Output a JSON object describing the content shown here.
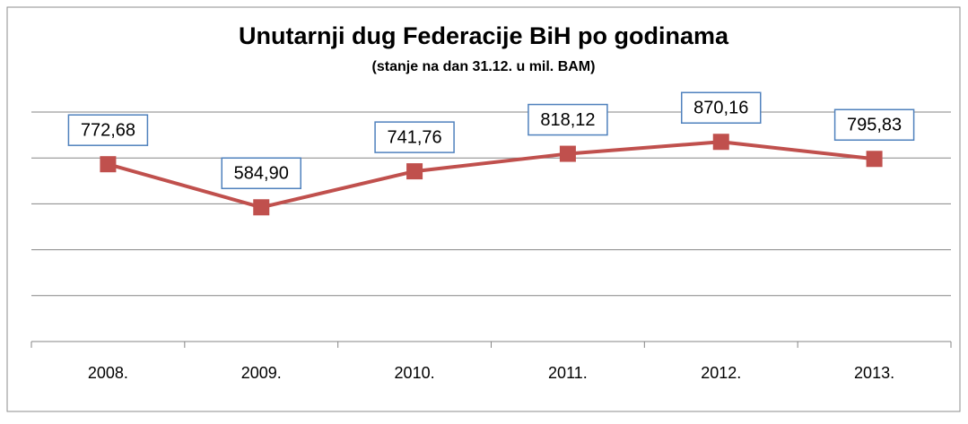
{
  "chart_data": {
    "type": "line",
    "title": "Unutarnji dug Federacije BiH po godinama",
    "subtitle": "(stanje na dan 31.12. u mil. BAM)",
    "categories": [
      "2008.",
      "2009.",
      "2010.",
      "2011.",
      "2012.",
      "2013."
    ],
    "series": [
      {
        "name": "Unutarnji dug",
        "color": "#c0504d",
        "values": [
          772.68,
          584.9,
          741.76,
          818.12,
          870.16,
          795.83
        ],
        "value_labels": [
          "772,68",
          "584,90",
          "741,76",
          "818,12",
          "870,16",
          "795,83"
        ]
      }
    ],
    "ylim": [
      0,
      1000
    ],
    "yticks": [
      0,
      200,
      400,
      600,
      800,
      1000
    ],
    "grid": true
  }
}
